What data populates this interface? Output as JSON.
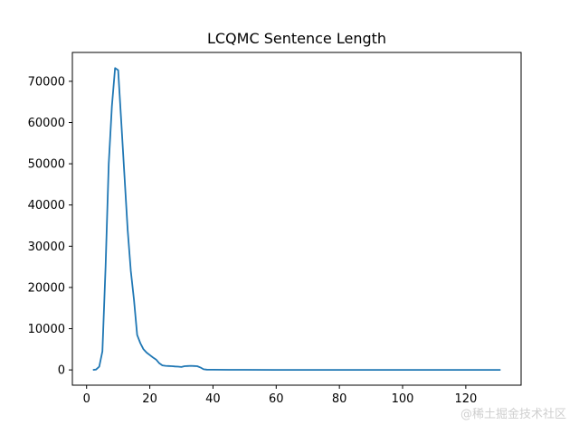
{
  "chart_data": {
    "type": "line",
    "title": "LCQMC Sentence Length",
    "xlabel": "",
    "ylabel": "",
    "xlim": [
      -4.5,
      137.5
    ],
    "ylim": [
      -3700,
      77000
    ],
    "xticks": [
      0,
      20,
      40,
      60,
      80,
      100,
      120
    ],
    "yticks": [
      0,
      10000,
      20000,
      30000,
      40000,
      50000,
      60000,
      70000
    ],
    "grid": false,
    "series": [
      {
        "color": "#1f77b4",
        "x": [
          2,
          3,
          4,
          5,
          6,
          7,
          8,
          9,
          10,
          11,
          12,
          13,
          14,
          15,
          16,
          17,
          18,
          19,
          20,
          21,
          22,
          23,
          24,
          25,
          26,
          27,
          28,
          29,
          30,
          31,
          32,
          33,
          34,
          35,
          36,
          37,
          38,
          40,
          45,
          50,
          60,
          80,
          100,
          120,
          131
        ],
        "y": [
          0,
          100,
          800,
          4500,
          25000,
          50000,
          64000,
          73200,
          72700,
          60000,
          47000,
          34000,
          24000,
          17000,
          8500,
          6500,
          5000,
          4200,
          3600,
          3000,
          2500,
          1600,
          1100,
          1000,
          950,
          900,
          850,
          800,
          700,
          900,
          950,
          1000,
          950,
          900,
          600,
          150,
          80,
          50,
          30,
          20,
          10,
          5,
          3,
          2,
          1
        ]
      }
    ]
  },
  "watermark": "@稀土掘金技术社区"
}
